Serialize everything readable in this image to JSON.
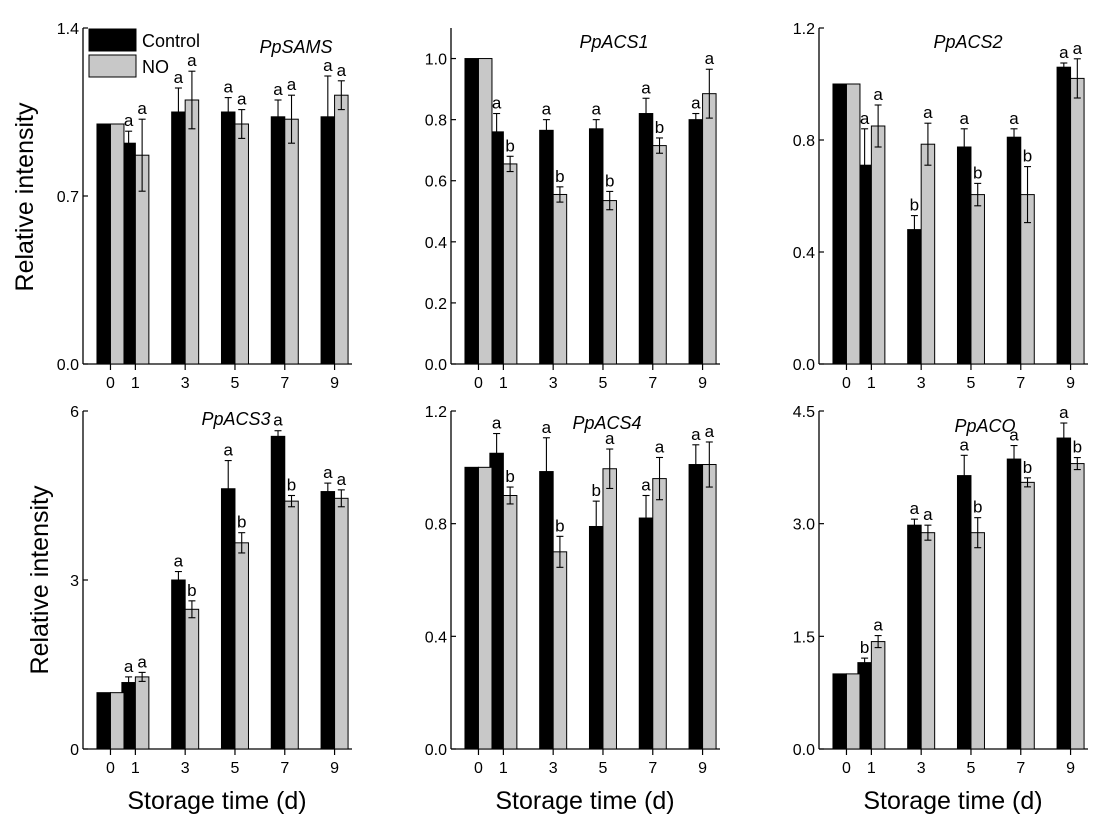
{
  "figure": {
    "legend": [
      {
        "name": "Control",
        "color": "#000000"
      },
      {
        "name": "NO",
        "color": "#c8c8c8"
      }
    ],
    "ylabel": "Relative intensity",
    "xlabel": "Storage time (d)"
  },
  "chart_data": [
    {
      "type": "bar",
      "title": "PpSAMS",
      "categories": [
        "0",
        "1",
        "3",
        "5",
        "7",
        "9"
      ],
      "ylim": [
        0,
        1.4
      ],
      "yticks": [
        "0.0",
        "0.7",
        "1.4"
      ],
      "ytick_values": [
        0,
        0.7,
        1.4
      ],
      "series": [
        {
          "name": "Control",
          "values": [
            1.0,
            0.92,
            1.05,
            1.05,
            1.03,
            1.03
          ],
          "errors": [
            0,
            0.05,
            0.1,
            0.06,
            0.07,
            0.17
          ],
          "labels": [
            "",
            "a",
            "a",
            "a",
            "a",
            "a"
          ]
        },
        {
          "name": "NO",
          "values": [
            1.0,
            0.87,
            1.1,
            1.0,
            1.02,
            1.12
          ],
          "errors": [
            0,
            0.15,
            0.12,
            0.06,
            0.1,
            0.06
          ],
          "labels": [
            "",
            "a",
            "a",
            "a",
            "a",
            "a"
          ]
        }
      ]
    },
    {
      "type": "bar",
      "title": "PpACS1",
      "categories": [
        "0",
        "1",
        "3",
        "5",
        "7",
        "9"
      ],
      "ylim": [
        0,
        1.1
      ],
      "yticks": [
        "0.0",
        "0.2",
        "0.4",
        "0.6",
        "0.8",
        "1.0"
      ],
      "ytick_values": [
        0,
        0.2,
        0.4,
        0.6,
        0.8,
        1.0
      ],
      "series": [
        {
          "name": "Control",
          "values": [
            1.0,
            0.76,
            0.765,
            0.77,
            0.82,
            0.8
          ],
          "errors": [
            0,
            0.06,
            0.035,
            0.03,
            0.05,
            0.02
          ],
          "labels": [
            "",
            "a",
            "a",
            "a",
            "a",
            "a"
          ]
        },
        {
          "name": "NO",
          "values": [
            1.0,
            0.655,
            0.555,
            0.535,
            0.715,
            0.885
          ],
          "errors": [
            0,
            0.025,
            0.025,
            0.03,
            0.025,
            0.08
          ],
          "labels": [
            "",
            "b",
            "b",
            "b",
            "b",
            "a"
          ]
        }
      ]
    },
    {
      "type": "bar",
      "title": "PpACS2",
      "categories": [
        "0",
        "1",
        "3",
        "5",
        "7",
        "9"
      ],
      "ylim": [
        0,
        1.2
      ],
      "yticks": [
        "0.0",
        "0.4",
        "0.8",
        "1.2"
      ],
      "ytick_values": [
        0,
        0.4,
        0.8,
        1.2
      ],
      "series": [
        {
          "name": "Control",
          "values": [
            1.0,
            0.71,
            0.48,
            0.775,
            0.81,
            1.06
          ],
          "errors": [
            0,
            0.13,
            0.05,
            0.065,
            0.03,
            0.015
          ],
          "labels": [
            "",
            "a",
            "b",
            "a",
            "a",
            "a"
          ]
        },
        {
          "name": "NO",
          "values": [
            1.0,
            0.85,
            0.785,
            0.605,
            0.605,
            1.02
          ],
          "errors": [
            0,
            0.075,
            0.075,
            0.04,
            0.1,
            0.07
          ],
          "labels": [
            "",
            "a",
            "a",
            "b",
            "b",
            "a"
          ]
        }
      ]
    },
    {
      "type": "bar",
      "title": "PpACS3",
      "categories": [
        "0",
        "1",
        "3",
        "5",
        "7",
        "9"
      ],
      "ylim": [
        0,
        6
      ],
      "yticks": [
        "0",
        "3",
        "6"
      ],
      "ytick_values": [
        0,
        3,
        6
      ],
      "series": [
        {
          "name": "Control",
          "values": [
            1.0,
            1.18,
            3.0,
            4.62,
            5.55,
            4.57
          ],
          "errors": [
            0,
            0.1,
            0.15,
            0.5,
            0.1,
            0.15
          ],
          "labels": [
            "",
            "a",
            "a",
            "a",
            "a",
            "a"
          ]
        },
        {
          "name": "NO",
          "values": [
            1.0,
            1.28,
            2.48,
            3.66,
            4.4,
            4.45
          ],
          "errors": [
            0,
            0.08,
            0.15,
            0.18,
            0.1,
            0.15
          ],
          "labels": [
            "",
            "a",
            "b",
            "b",
            "b",
            "a"
          ]
        }
      ]
    },
    {
      "type": "bar",
      "title": "PpACS4",
      "categories": [
        "0",
        "1",
        "3",
        "5",
        "7",
        "9"
      ],
      "ylim": [
        0,
        1.2
      ],
      "yticks": [
        "0.0",
        "0.4",
        "0.8",
        "1.2"
      ],
      "ytick_values": [
        0,
        0.4,
        0.8,
        1.2
      ],
      "series": [
        {
          "name": "Control",
          "values": [
            1.0,
            1.05,
            0.985,
            0.79,
            0.82,
            1.01
          ],
          "errors": [
            0,
            0.07,
            0.12,
            0.09,
            0.08,
            0.07
          ],
          "labels": [
            "",
            "a",
            "a",
            "b",
            "a",
            "a"
          ]
        },
        {
          "name": "NO",
          "values": [
            1.0,
            0.9,
            0.7,
            0.995,
            0.96,
            1.01
          ],
          "errors": [
            0,
            0.03,
            0.055,
            0.07,
            0.075,
            0.08
          ],
          "labels": [
            "",
            "b",
            "b",
            "a",
            "a",
            "a"
          ]
        }
      ]
    },
    {
      "type": "bar",
      "title": "PpACO",
      "categories": [
        "0",
        "1",
        "3",
        "5",
        "7",
        "9"
      ],
      "ylim": [
        0,
        4.5
      ],
      "yticks": [
        "0.0",
        "1.5",
        "3.0",
        "4.5"
      ],
      "ytick_values": [
        0,
        1.5,
        3.0,
        4.5
      ],
      "series": [
        {
          "name": "Control",
          "values": [
            1.0,
            1.15,
            2.98,
            3.64,
            3.86,
            4.14
          ],
          "errors": [
            0,
            0.06,
            0.08,
            0.27,
            0.18,
            0.2
          ],
          "labels": [
            "",
            "b",
            "a",
            "a",
            "a",
            "a"
          ]
        },
        {
          "name": "NO",
          "values": [
            1.0,
            1.43,
            2.88,
            2.88,
            3.55,
            3.8
          ],
          "errors": [
            0,
            0.08,
            0.1,
            0.2,
            0.06,
            0.08
          ],
          "labels": [
            "",
            "a",
            "a",
            "b",
            "b",
            "b"
          ]
        }
      ]
    }
  ]
}
